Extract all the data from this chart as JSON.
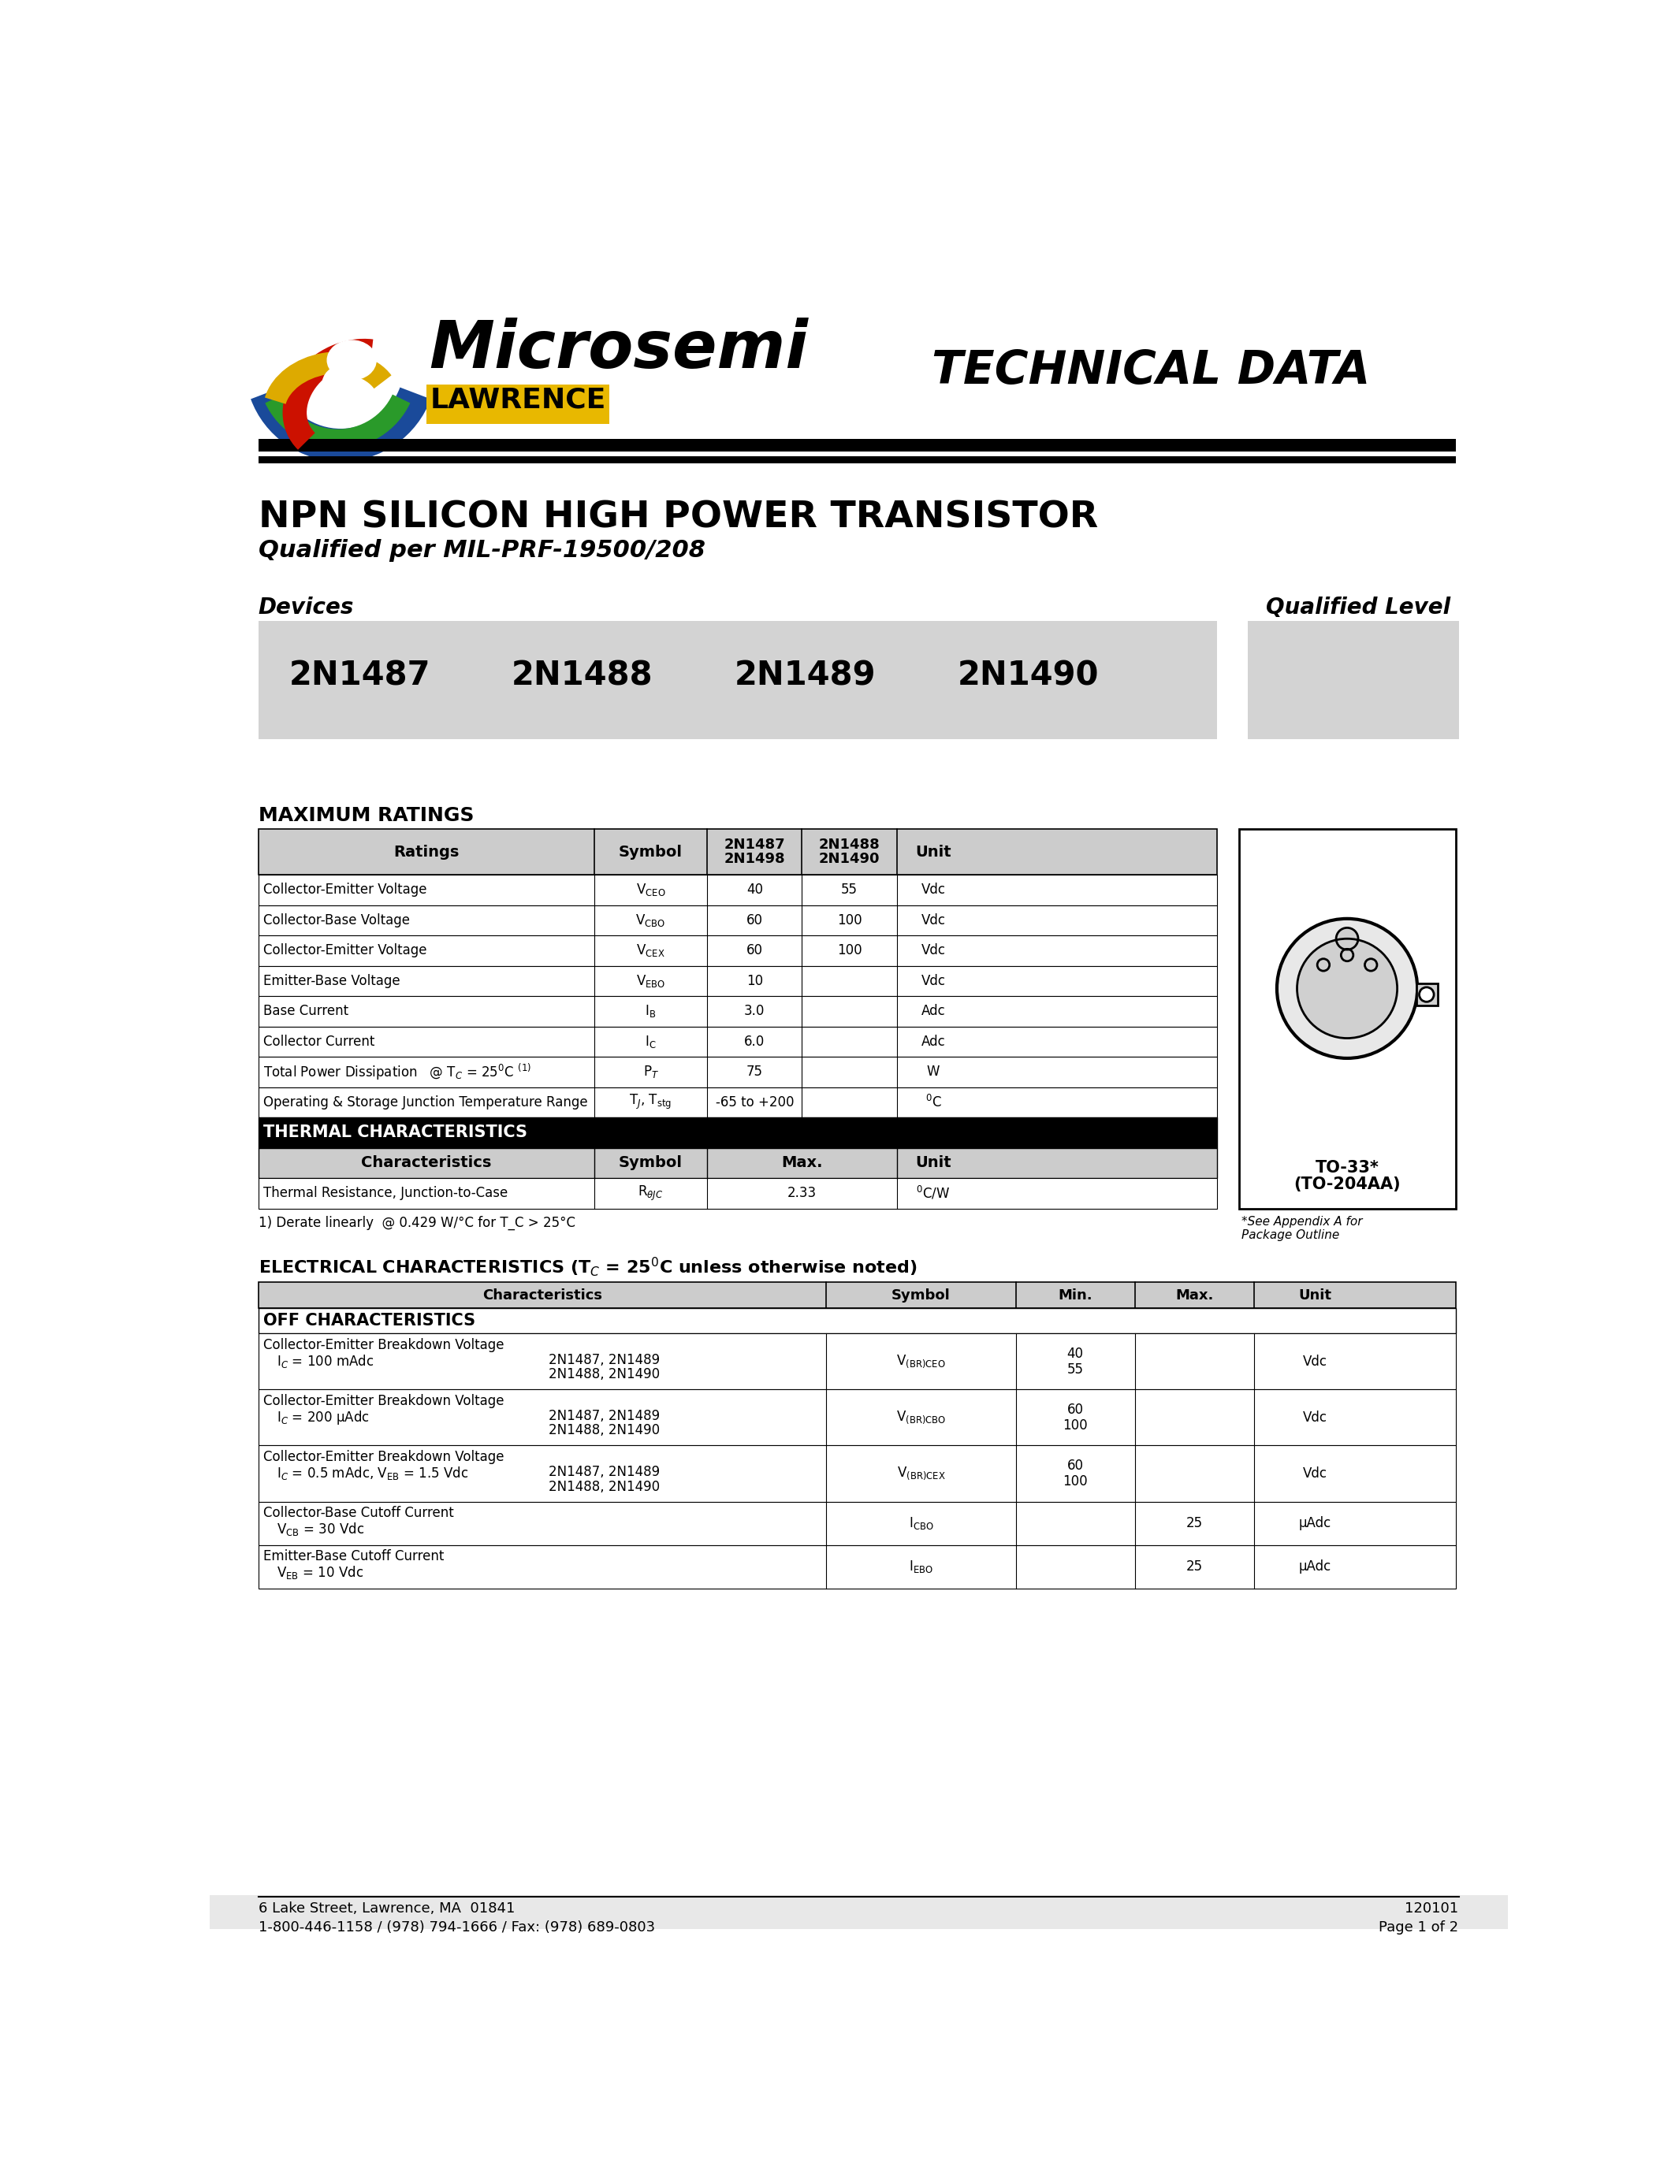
{
  "page_bg": "#ffffff",
  "title_main": "NPN SILICON HIGH POWER TRANSISTOR",
  "title_sub": "Qualified per MIL-PRF-19500/208",
  "tech_data": "TECHNICAL DATA",
  "devices_label": "Devices",
  "qualified_level_label": "Qualified Level",
  "device_names": [
    "2N1487",
    "2N1488",
    "2N1489",
    "2N1490"
  ],
  "max_ratings_title": "MAXIMUM RATINGS",
  "thermal_title": "THERMAL CHARACTERISTICS",
  "thermal_note": "1) Derate linearly  @ 0.429 W/°C for T_C > 25°C",
  "elec_title_prefix": "ELECTRICAL CHARACTERISTICS (T",
  "elec_title_suffix": " = 25",
  "elec_title_end": "C unless otherwise noted)",
  "elec_headers": [
    "Characteristics",
    "Symbol",
    "Min.",
    "Max.",
    "Unit"
  ],
  "off_char_title": "OFF CHARACTERISTICS",
  "footer_left1": "6 Lake Street, Lawrence, MA  01841",
  "footer_left2": "1-800-446-1158 / (978) 794-1666 / Fax: (978) 689-0803",
  "footer_right1": "120101",
  "footer_right2": "Page 1 of 2",
  "package_name1": "TO-33*",
  "package_name2": "(TO-204AA)",
  "package_note": "*See Appendix A for\nPackage Outline",
  "gray_light": "#d3d3d3",
  "gray_header": "#cccccc",
  "black": "#000000",
  "white": "#ffffff"
}
